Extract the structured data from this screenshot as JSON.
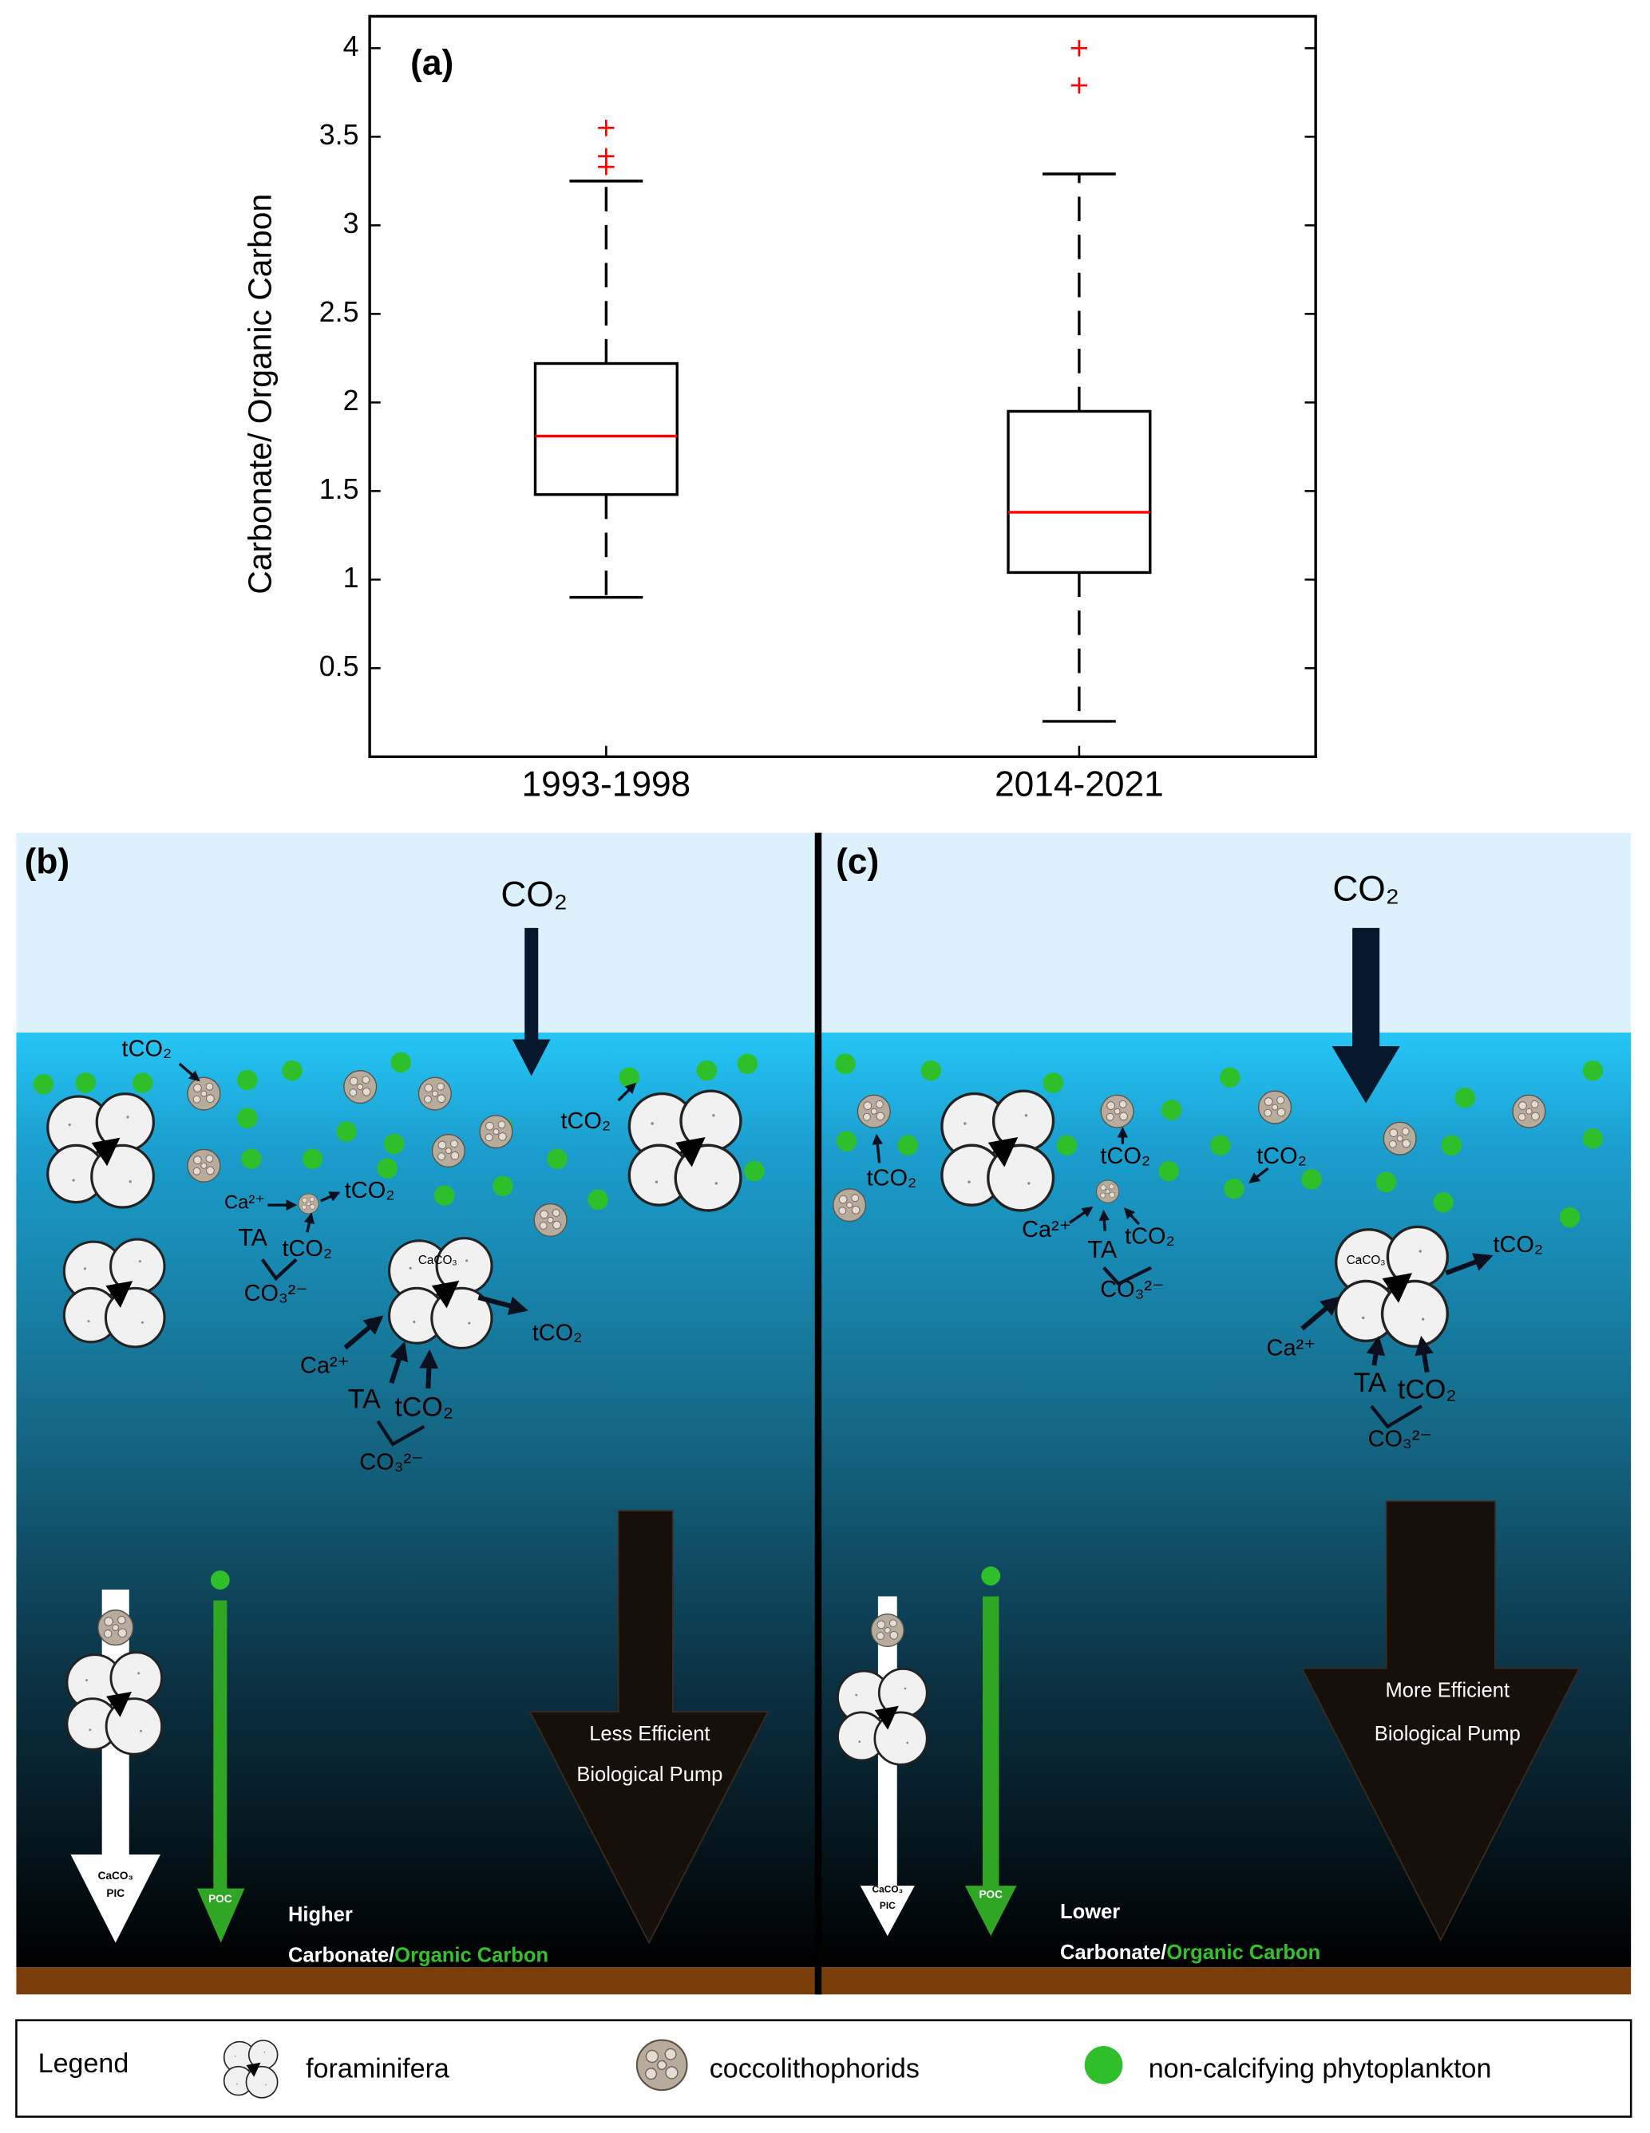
{
  "chart_data": {
    "type": "box",
    "panel_label": "(a)",
    "y_label": "Carbonate/ Organic Carbon",
    "categories": [
      "1993-1998",
      "2014-2021"
    ],
    "boxes": [
      {
        "whislo": 0.9,
        "q1": 1.48,
        "med": 1.81,
        "q3": 2.22,
        "whishi": 3.25,
        "fliers": [
          3.33,
          3.39,
          3.55
        ]
      },
      {
        "whislo": 0.2,
        "q1": 1.04,
        "med": 1.38,
        "q3": 1.95,
        "whishi": 3.29,
        "fliers": [
          3.79,
          4.0
        ]
      }
    ],
    "box_color": "#000000",
    "median_color": "#ff0000",
    "flier_color": "#ff0000",
    "ylim": [
      0,
      4.18
    ],
    "yticks": [
      0.5,
      1,
      1.5,
      2,
      2.5,
      3,
      3.5,
      4
    ],
    "grid": false
  },
  "panel_b": {
    "label": "(b)",
    "surface": "CO₂",
    "labels": [
      "tCO₂",
      "tCO₂",
      "Ca²⁺",
      "tCO₂",
      "TA",
      "tCO₂",
      "CO₃²⁻",
      "CaCO₃",
      "tCO₂",
      "Ca²⁺",
      "TA",
      "tCO₂",
      "CO₃²⁻"
    ],
    "pic": [
      "CaCO₃",
      "PIC"
    ],
    "poc": "POC",
    "pump": [
      "Less Efficient",
      "Biological Pump"
    ],
    "ratio": [
      "Higher",
      "Carbonate/",
      "Organic Carbon"
    ]
  },
  "panel_c": {
    "label": "(c)",
    "surface": "CO₂",
    "labels": [
      "tCO₂",
      "tCO₂",
      "tCO₂",
      "Ca²⁺",
      "TA",
      "tCO₂",
      "CO₃²⁻",
      "CaCO₃",
      "tCO₂",
      "Ca²⁺",
      "TA",
      "tCO₂",
      "CO₃²⁻"
    ],
    "pic": [
      "CaCO₃",
      "PIC"
    ],
    "poc": "POC",
    "pump": [
      "More Efficient",
      "Biological Pump"
    ],
    "ratio": [
      "Lower",
      "Carbonate/",
      "Organic Carbon"
    ]
  },
  "legend": {
    "title": "Legend",
    "items": [
      "foraminifera",
      "coccolithophorids",
      "non-calcifying phytoplankton"
    ]
  }
}
